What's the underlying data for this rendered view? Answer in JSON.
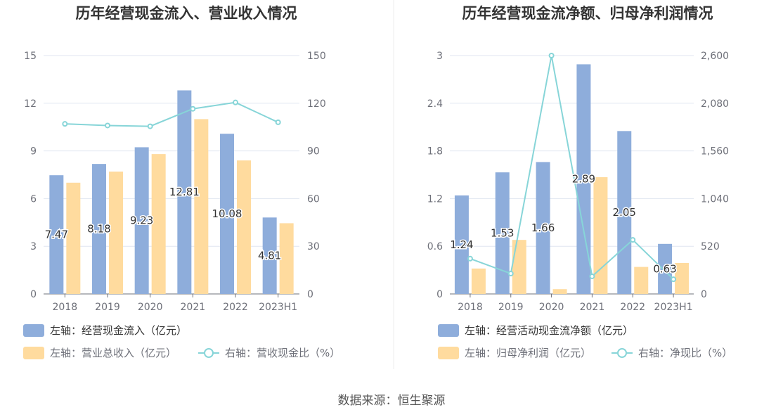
{
  "chart_data": [
    {
      "type": "bar",
      "title": "历年经营现金流入、营业收入情况",
      "categories": [
        "2018",
        "2019",
        "2020",
        "2021",
        "2022",
        "2023H1"
      ],
      "left_axis": {
        "min": 0,
        "max": 15,
        "ticks": [
          "0",
          "3",
          "6",
          "9",
          "12",
          "15"
        ]
      },
      "right_axis": {
        "min": 0,
        "max": 150,
        "ticks": [
          "0",
          "30",
          "60",
          "90",
          "120",
          "150"
        ]
      },
      "series": [
        {
          "name": "左轴：经营现金流入（亿元）",
          "axis": "left",
          "kind": "bar",
          "color": "#8eaddb",
          "values": [
            7.47,
            8.18,
            9.23,
            12.81,
            10.08,
            4.81
          ],
          "labels": [
            "7.47",
            "8.18",
            "9.23",
            "12.81",
            "10.08",
            "4.81"
          ]
        },
        {
          "name": "左轴：营业总收入（亿元）",
          "axis": "left",
          "kind": "bar",
          "color": "#ffdb9e",
          "values": [
            7.0,
            7.7,
            8.8,
            11.0,
            8.4,
            4.45
          ]
        },
        {
          "name": "右轴：营收现金比（%）",
          "axis": "right",
          "kind": "line",
          "color": "#87d5d8",
          "values": [
            107,
            106,
            105.5,
            116.5,
            120.5,
            108
          ]
        }
      ]
    },
    {
      "type": "bar",
      "title": "历年经营现金流净额、归母净利润情况",
      "categories": [
        "2018",
        "2019",
        "2020",
        "2021",
        "2022",
        "2023H1"
      ],
      "left_axis": {
        "min": 0,
        "max": 3,
        "ticks": [
          "0",
          "0.6",
          "1.2",
          "1.8",
          "2.4",
          "3"
        ]
      },
      "right_axis": {
        "min": 0,
        "max": 2600,
        "ticks": [
          "0",
          "520",
          "1,040",
          "1,560",
          "2,080",
          "2,600"
        ]
      },
      "series": [
        {
          "name": "左轴：经营活动现金流净额（亿元）",
          "axis": "left",
          "kind": "bar",
          "color": "#8eaddb",
          "values": [
            1.24,
            1.53,
            1.66,
            2.89,
            2.05,
            0.63
          ],
          "labels": [
            "1.24",
            "1.53",
            "1.66",
            "2.89",
            "2.05",
            "0.63"
          ]
        },
        {
          "name": "左轴：归母净利润（亿元）",
          "axis": "left",
          "kind": "bar",
          "color": "#ffdb9e",
          "values": [
            0.32,
            0.68,
            0.06,
            1.47,
            0.34,
            0.39
          ]
        },
        {
          "name": "右轴：净现比（%）",
          "axis": "right",
          "kind": "line",
          "color": "#87d5d8",
          "values": [
            385,
            222,
            2600,
            192,
            590,
            160
          ]
        }
      ]
    }
  ],
  "footer": {
    "source": "数据来源：恒生聚源"
  }
}
